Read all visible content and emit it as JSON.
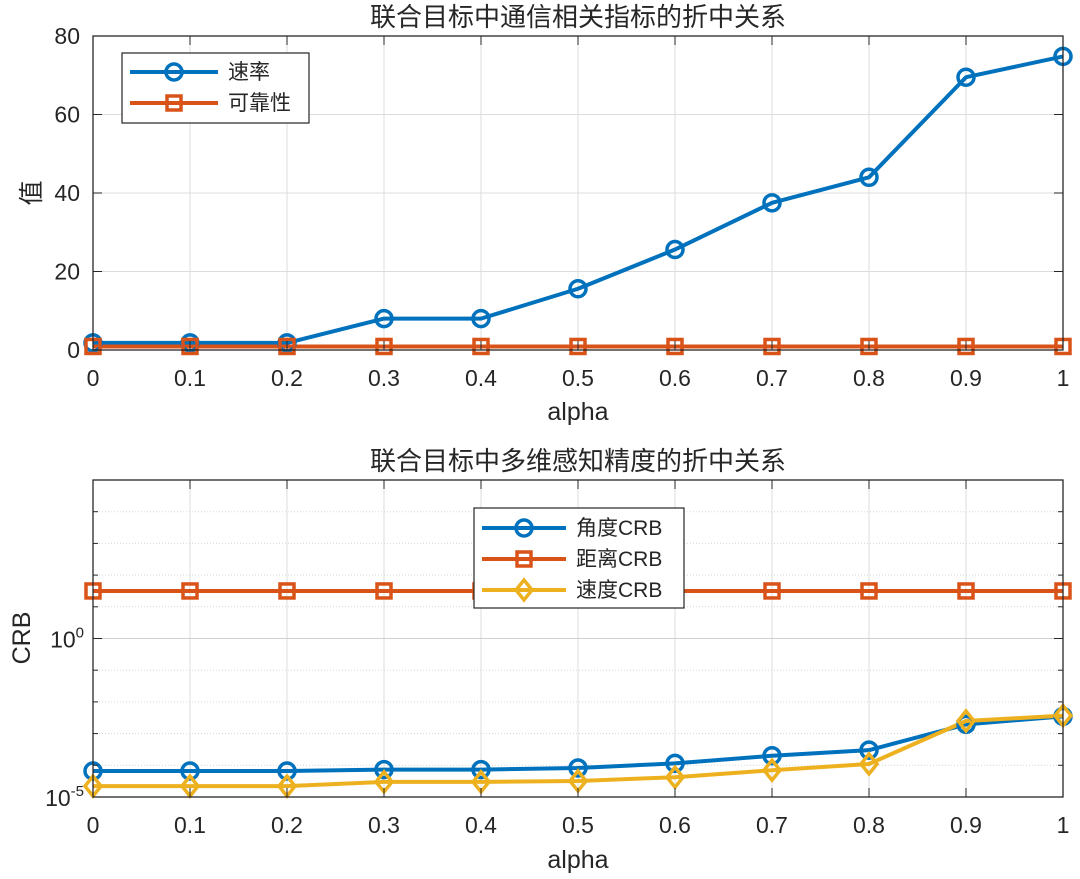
{
  "chart_data": [
    {
      "type": "line",
      "title": "联合目标中通信相关指标的折中关系",
      "xlabel": "alpha",
      "ylabel": "值",
      "x": [
        0,
        0.1,
        0.2,
        0.3,
        0.4,
        0.5,
        0.6,
        0.7,
        0.8,
        0.9,
        1
      ],
      "x_tick_labels": [
        "0",
        "0.1",
        "0.2",
        "0.3",
        "0.4",
        "0.5",
        "0.6",
        "0.7",
        "0.8",
        "0.9",
        "1"
      ],
      "xlim": [
        0,
        1
      ],
      "ylim": [
        0,
        80
      ],
      "y_ticks": [
        0,
        20,
        40,
        60,
        80
      ],
      "y_tick_labels": [
        "0",
        "20",
        "40",
        "60",
        "80"
      ],
      "grid": true,
      "legend_position": "top-left",
      "series": [
        {
          "name": "速率",
          "color": "#0072BD",
          "marker": "circle",
          "values": [
            1.8,
            1.8,
            1.8,
            8.0,
            8.0,
            15.6,
            25.6,
            37.5,
            44.0,
            69.5,
            74.8
          ]
        },
        {
          "name": "可靠性",
          "color": "#D95319",
          "marker": "square",
          "values": [
            0.9,
            0.9,
            0.9,
            0.9,
            0.9,
            0.9,
            0.9,
            0.9,
            0.9,
            0.9,
            0.9
          ]
        }
      ]
    },
    {
      "type": "line",
      "scale": "log",
      "title": "联合目标中多维感知精度的折中关系",
      "xlabel": "alpha",
      "ylabel": "CRB",
      "x": [
        0,
        0.1,
        0.2,
        0.3,
        0.4,
        0.5,
        0.6,
        0.7,
        0.8,
        0.9,
        1
      ],
      "x_tick_labels": [
        "0",
        "0.1",
        "0.2",
        "0.3",
        "0.4",
        "0.5",
        "0.6",
        "0.7",
        "0.8",
        "0.9",
        "1"
      ],
      "xlim": [
        0,
        1
      ],
      "ylim_log10": [
        -5,
        5
      ],
      "y_ticks_log10": [
        -5,
        0
      ],
      "y_tick_labels": [
        {
          "base": "10",
          "exp": "-5"
        },
        {
          "base": "10",
          "exp": "0"
        }
      ],
      "grid": true,
      "legend_position": "center-top",
      "series": [
        {
          "name": "角度CRB",
          "color": "#0072BD",
          "marker": "circle",
          "values": [
            6.6e-05,
            6.6e-05,
            6.6e-05,
            7.3e-05,
            7.3e-05,
            8.2e-05,
            0.000115,
            0.0002,
            0.0003,
            0.00195,
            0.0035
          ]
        },
        {
          "name": "距离CRB",
          "color": "#D95319",
          "marker": "square",
          "values": [
            31.6,
            31.6,
            31.6,
            31.6,
            31.6,
            31.6,
            31.6,
            31.6,
            31.6,
            31.6,
            31.6
          ]
        },
        {
          "name": "速度CRB",
          "color": "#EDB120",
          "marker": "diamond",
          "values": [
            2.2e-05,
            2.2e-05,
            2.2e-05,
            3e-05,
            3e-05,
            3.2e-05,
            4.2e-05,
            7e-05,
            0.00011,
            0.0025,
            0.0037
          ]
        }
      ]
    }
  ]
}
